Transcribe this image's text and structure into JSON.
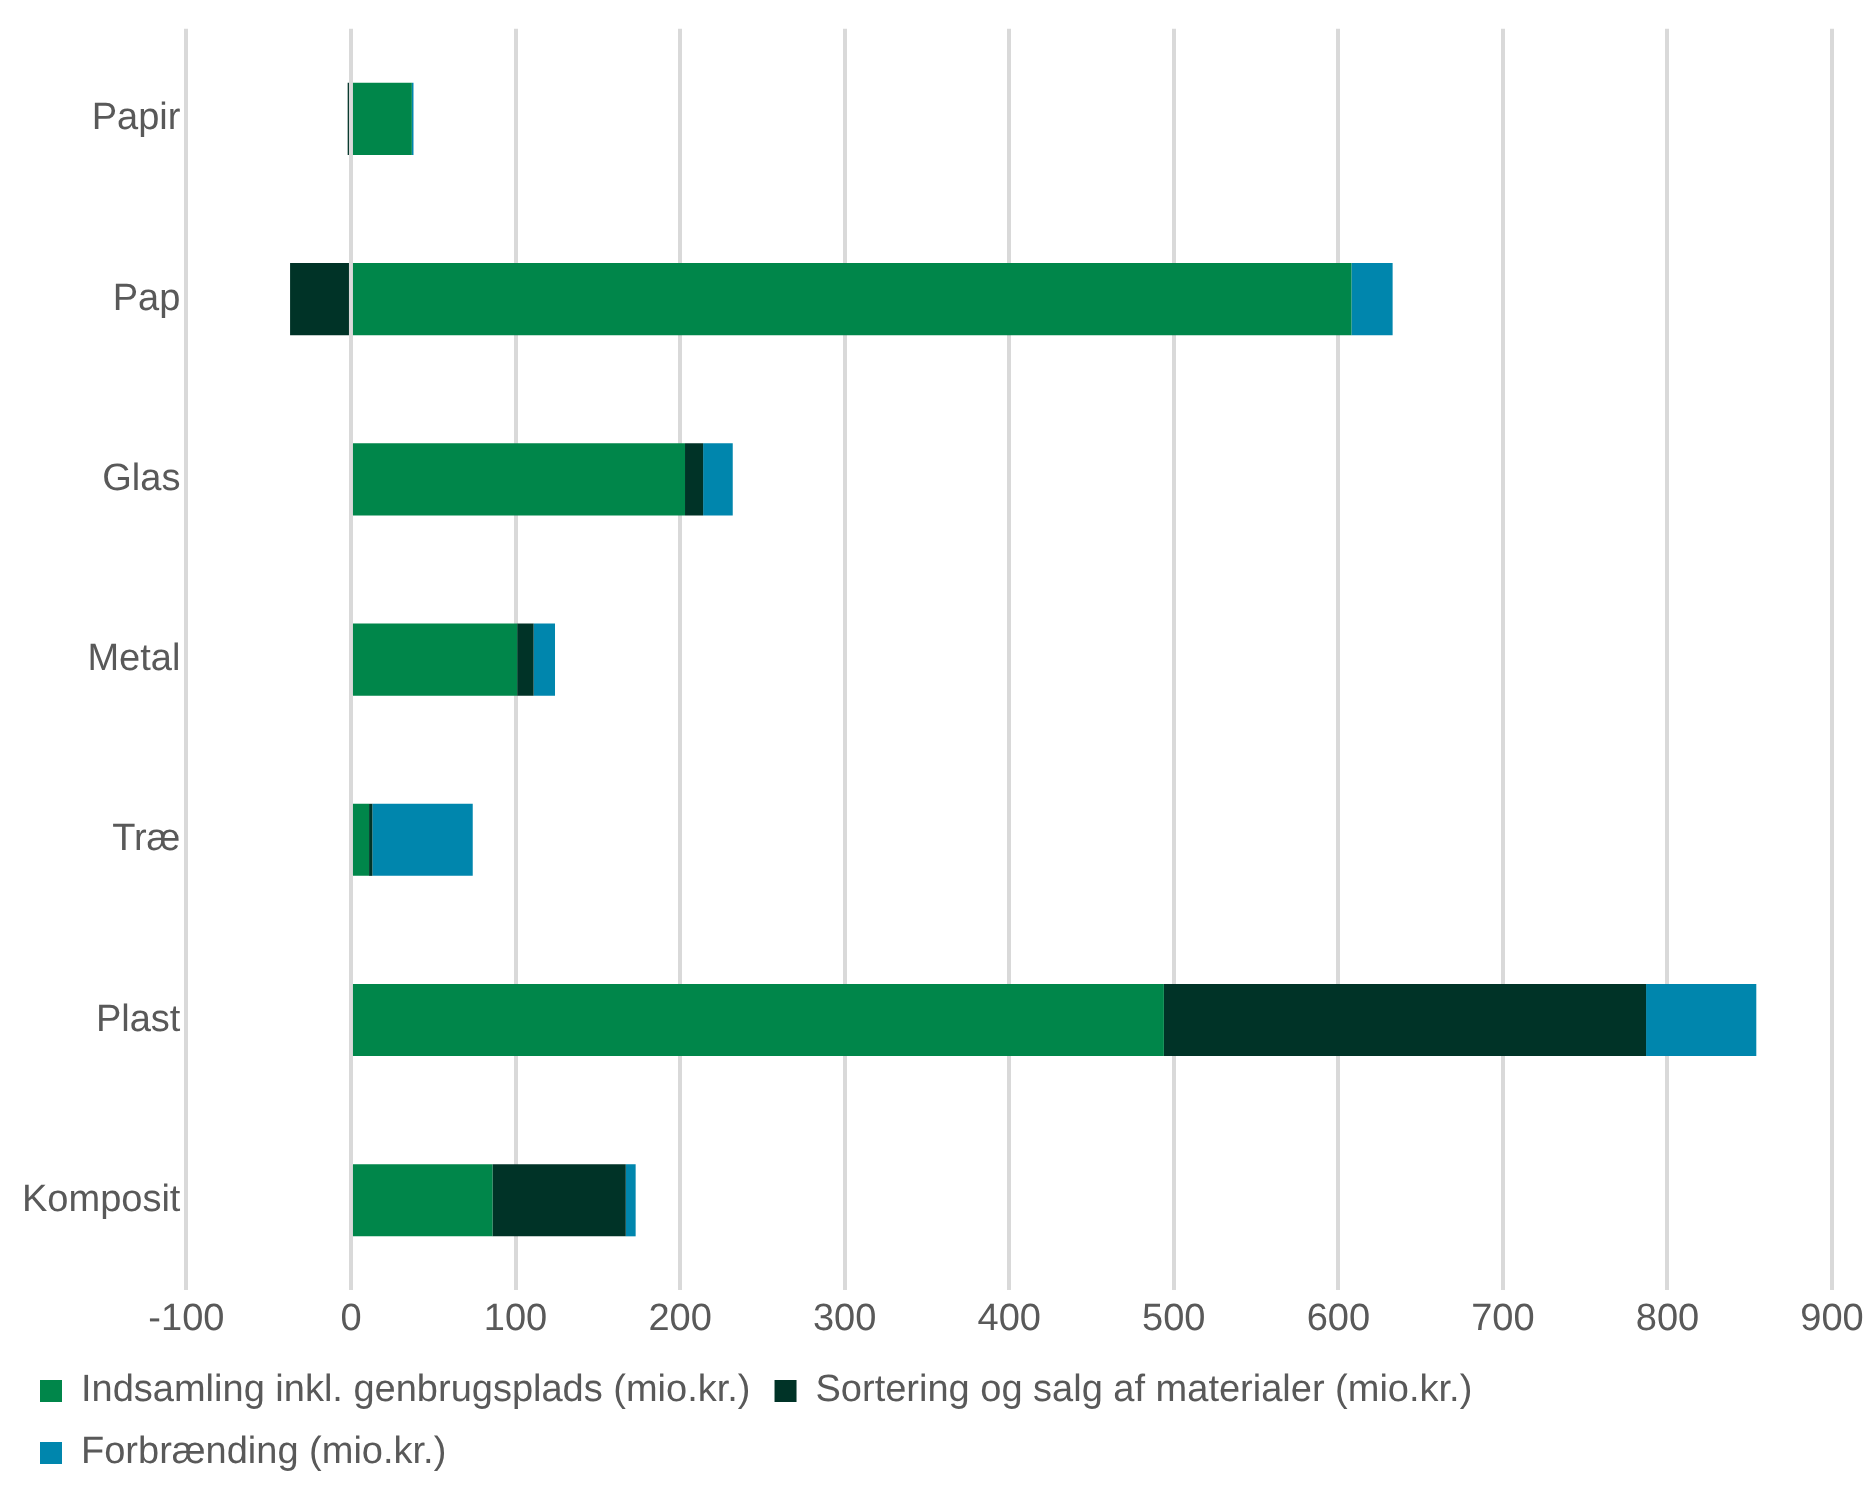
{
  "chart_data": {
    "type": "bar",
    "orientation": "horizontal",
    "stacked": true,
    "categories": [
      "Papir",
      "Pap",
      "Glas",
      "Metal",
      "Træ",
      "Plast",
      "Komposit"
    ],
    "series": [
      {
        "name": "Indsamling inkl. genbrugsplads (mio.kr.)",
        "color": "#00864a",
        "values": [
          37,
          608,
          203,
          101,
          11,
          494,
          86
        ]
      },
      {
        "name": "Sortering og salg af materialer (mio.kr.)",
        "color": "#003327",
        "values": [
          -2,
          -37,
          11,
          10,
          2,
          293,
          81
        ]
      },
      {
        "name": "Forbrænding (mio.kr.)",
        "color": "#0086ad",
        "values": [
          1,
          25,
          18,
          13,
          61,
          67,
          6
        ]
      }
    ],
    "xlim": [
      -100,
      900
    ],
    "xticks": [
      -100,
      0,
      100,
      200,
      300,
      400,
      500,
      600,
      700,
      800,
      900
    ],
    "grid": "x",
    "legend": "bottom"
  }
}
